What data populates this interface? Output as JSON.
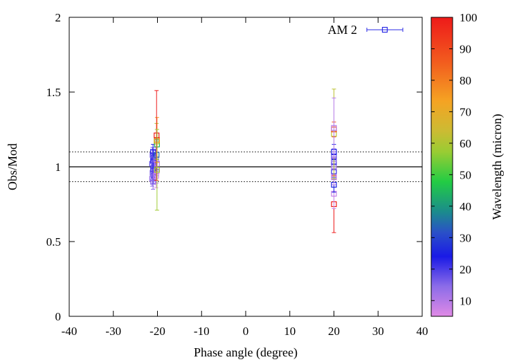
{
  "chart_data": {
    "type": "scatter",
    "xlabel": "Phase angle (degree)",
    "ylabel": "Obs/Mod",
    "xlim": [
      -40,
      40
    ],
    "ylim": [
      0,
      2
    ],
    "xticks": [
      "-40",
      "-30",
      "-20",
      "-10",
      "0",
      "10",
      "20",
      "30",
      "40"
    ],
    "yticks": [
      "0",
      "0.5",
      "1",
      "1.5",
      "2"
    ],
    "reference_lines": [
      {
        "y": 1.0,
        "style": "solid"
      },
      {
        "y": 0.9,
        "style": "dotted"
      },
      {
        "y": 1.1,
        "style": "dotted"
      }
    ],
    "legend_position": "top-right",
    "colorbar": {
      "label": "Wavelength (micron)",
      "min": 5,
      "max": 100,
      "ticks": [
        "10",
        "20",
        "30",
        "40",
        "50",
        "60",
        "70",
        "80",
        "90",
        "100"
      ]
    },
    "series": [
      {
        "name": "AM 2",
        "marker": "open-square",
        "points": [
          {
            "x": -21.0,
            "y": 0.9,
            "err": 0.05,
            "w": 15
          },
          {
            "x": -21.2,
            "y": 0.92,
            "err": 0.05,
            "w": 14
          },
          {
            "x": -20.9,
            "y": 0.94,
            "err": 0.05,
            "w": 18
          },
          {
            "x": -21.1,
            "y": 0.96,
            "err": 0.05,
            "w": 16
          },
          {
            "x": -21.0,
            "y": 0.98,
            "err": 0.05,
            "w": 20
          },
          {
            "x": -20.8,
            "y": 1.0,
            "err": 0.05,
            "w": 17
          },
          {
            "x": -21.2,
            "y": 1.02,
            "err": 0.05,
            "w": 19
          },
          {
            "x": -21.0,
            "y": 1.04,
            "err": 0.05,
            "w": 22
          },
          {
            "x": -20.9,
            "y": 1.06,
            "err": 0.05,
            "w": 21
          },
          {
            "x": -21.1,
            "y": 1.08,
            "err": 0.05,
            "w": 18
          },
          {
            "x": -21.0,
            "y": 1.1,
            "err": 0.05,
            "w": 23
          },
          {
            "x": -20.3,
            "y": 0.94,
            "err": 0.08,
            "w": 6
          },
          {
            "x": -20.2,
            "y": 0.97,
            "err": 0.08,
            "w": 8
          },
          {
            "x": -20.1,
            "y": 1.02,
            "err": 0.08,
            "w": 10
          },
          {
            "x": -20.3,
            "y": 1.05,
            "err": 0.08,
            "w": 12
          },
          {
            "x": -20.2,
            "y": 1.08,
            "err": 0.1,
            "w": 35
          },
          {
            "x": -20.1,
            "y": 1.15,
            "err": 0.1,
            "w": 45
          },
          {
            "x": -20.2,
            "y": 1.17,
            "err": 0.12,
            "w": 60
          },
          {
            "x": -20.1,
            "y": 1.18,
            "err": 0.15,
            "w": 75
          },
          {
            "x": -20.2,
            "y": 1.21,
            "err": 0.3,
            "w": 100
          },
          {
            "x": -20.1,
            "y": 0.98,
            "err": 0.27,
            "w": 58
          },
          {
            "x": 20.0,
            "y": 0.75,
            "err": 0.19,
            "w": 100
          },
          {
            "x": 20.0,
            "y": 0.82,
            "err": 0.1,
            "w": 8
          },
          {
            "x": 20.0,
            "y": 0.88,
            "err": 0.05,
            "w": 25
          },
          {
            "x": 20.0,
            "y": 0.93,
            "err": 0.05,
            "w": 9
          },
          {
            "x": 20.0,
            "y": 0.97,
            "err": 0.05,
            "w": 22
          },
          {
            "x": 20.0,
            "y": 1.0,
            "err": 0.05,
            "w": 11
          },
          {
            "x": 20.0,
            "y": 1.03,
            "err": 0.05,
            "w": 20
          },
          {
            "x": 20.0,
            "y": 1.05,
            "err": 0.05,
            "w": 15
          },
          {
            "x": 20.0,
            "y": 1.07,
            "err": 0.05,
            "w": 18
          },
          {
            "x": 20.0,
            "y": 1.1,
            "err": 0.05,
            "w": 24
          },
          {
            "x": 20.0,
            "y": 1.22,
            "err": 0.3,
            "w": 62
          },
          {
            "x": 20.0,
            "y": 1.25,
            "err": 0.05,
            "w": 90
          },
          {
            "x": 20.0,
            "y": 1.26,
            "err": 0.2,
            "w": 10
          }
        ]
      }
    ]
  }
}
